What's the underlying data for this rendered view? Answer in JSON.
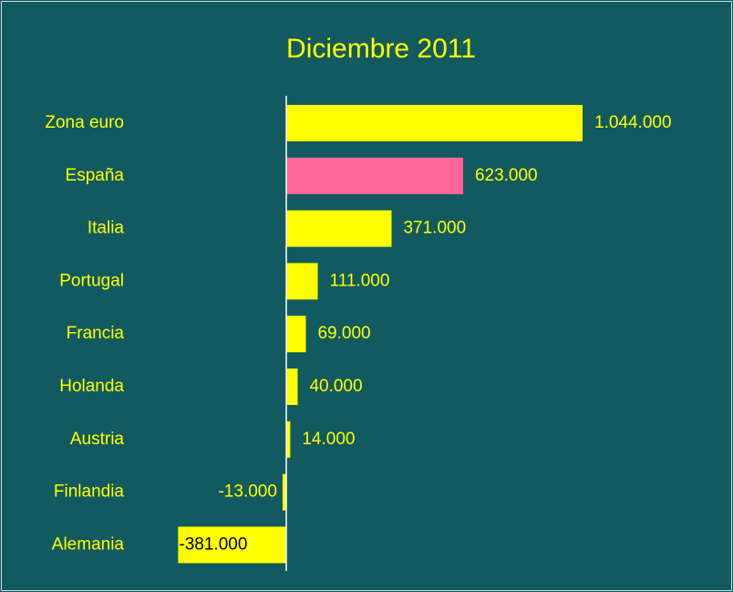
{
  "chart_data": {
    "type": "bar",
    "orientation": "horizontal",
    "title": "Diciembre 2011",
    "categories": [
      "Zona euro",
      "España",
      "Italia",
      "Portugal",
      "Francia",
      "Holanda",
      "Austria",
      "Finlandia",
      "Alemania"
    ],
    "values": [
      1044000,
      623000,
      371000,
      111000,
      69000,
      40000,
      14000,
      -13000,
      -381000
    ],
    "value_labels": [
      "1.044.000",
      "623.000",
      "371.000",
      "111.000",
      "69.000",
      "40.000",
      "14.000",
      "-13.000",
      "-381.000"
    ],
    "colors": [
      "#ffff00",
      "#ff6699",
      "#ffff00",
      "#ffff00",
      "#ffff00",
      "#ffff00",
      "#ffff00",
      "#ffff00",
      "#ffff00"
    ]
  }
}
